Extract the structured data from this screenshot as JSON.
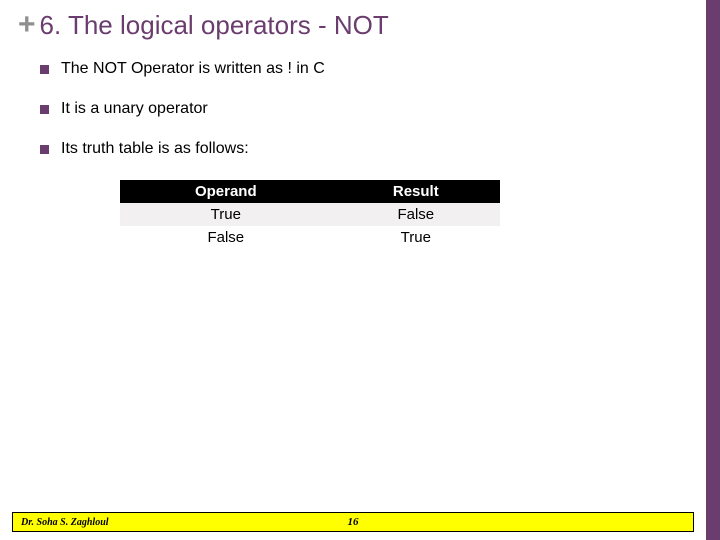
{
  "header": {
    "plus": "+",
    "title": "6. The logical operators - NOT"
  },
  "bullets": [
    "The NOT Operator is written as ! in C",
    "It is a unary operator",
    "Its truth table is as follows:"
  ],
  "table": {
    "columns": [
      "Operand",
      "Result"
    ],
    "rows": [
      [
        "True",
        "False"
      ],
      [
        "False",
        "True"
      ]
    ],
    "header_bg": "#000000",
    "header_fg": "#ffffff",
    "row_odd_bg": "#f2f0f0",
    "row_even_bg": "#ffffff"
  },
  "footer": {
    "author": "Dr. Soha S. Zaghloul",
    "page": "16",
    "bg": "#ffff00"
  },
  "accent_color": "#6b3d6f"
}
